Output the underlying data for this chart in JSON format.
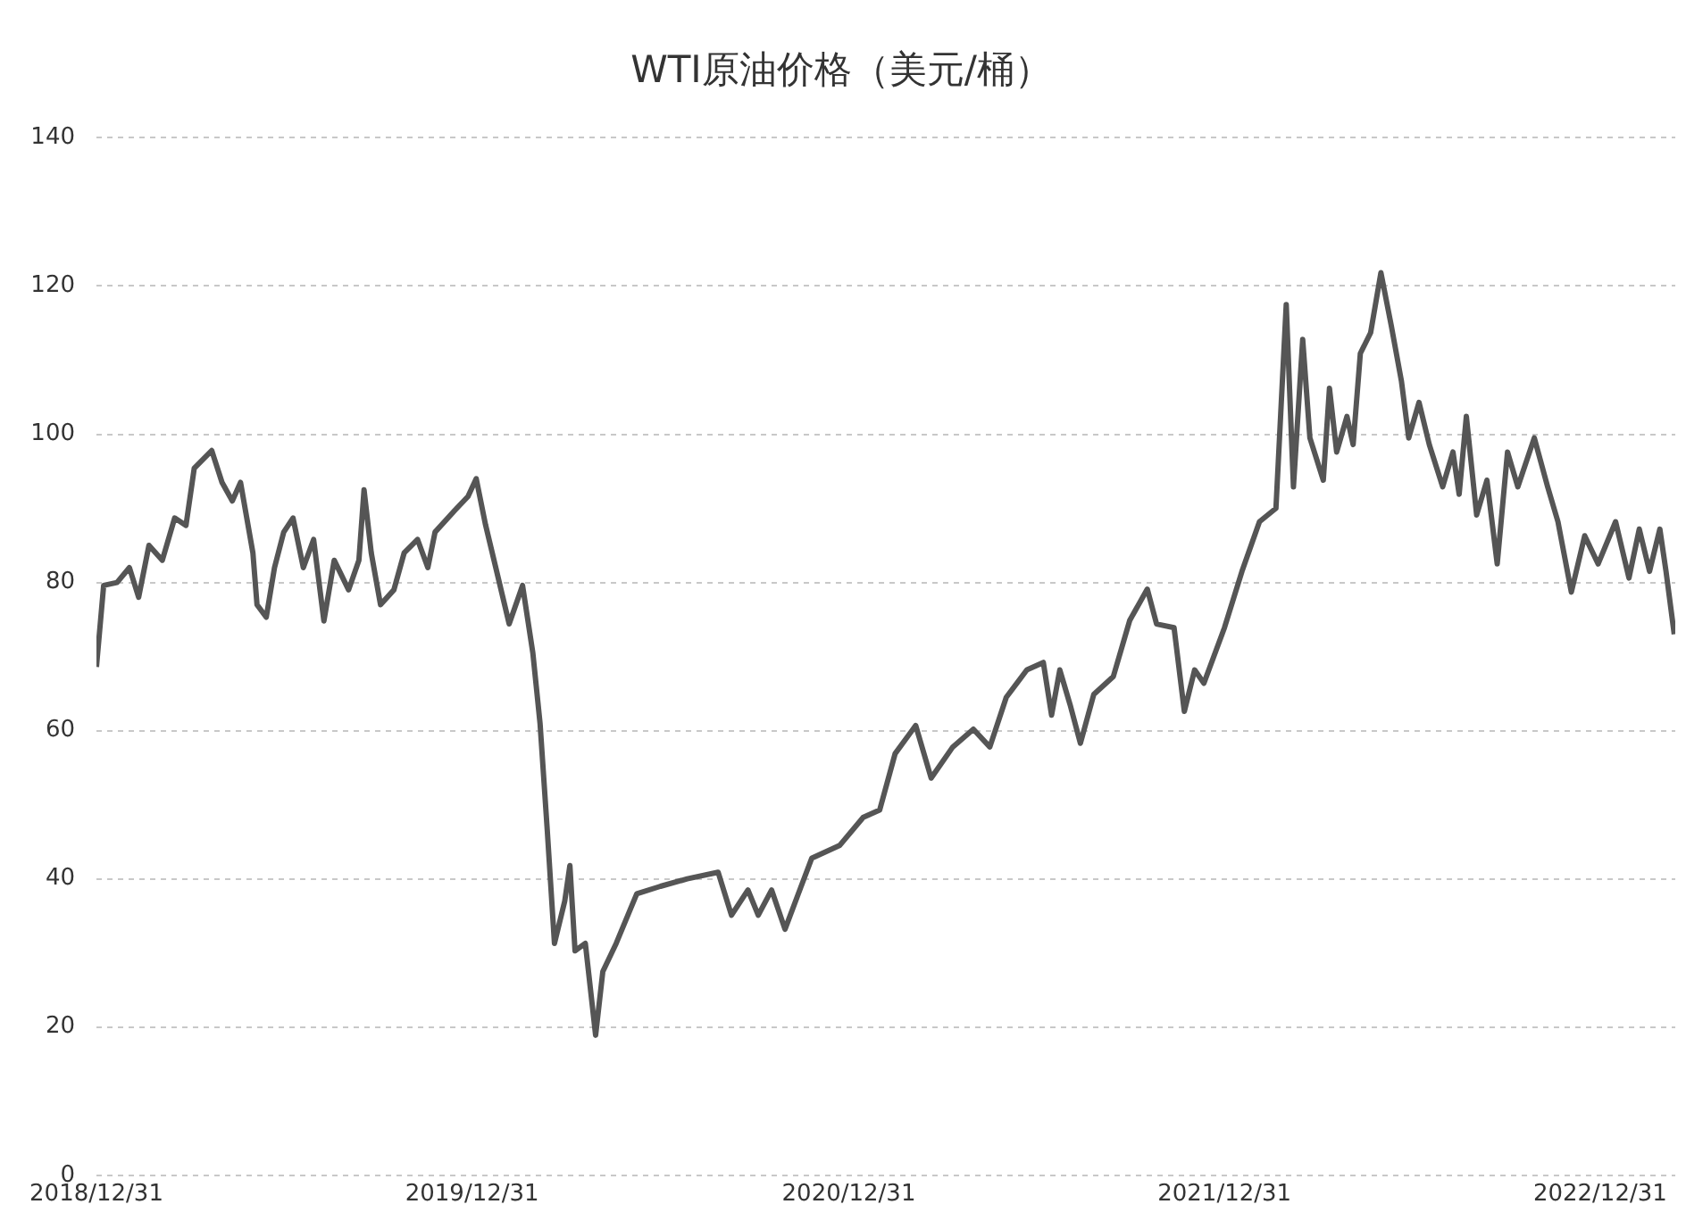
{
  "chart_data": {
    "type": "line",
    "title": "WTI原油价格（美元/桶）",
    "x": [
      "2018-12-31",
      "2019-01-07",
      "2019-01-20",
      "2019-02-01",
      "2019-02-10",
      "2019-02-20",
      "2019-03-05",
      "2019-03-17",
      "2019-03-28",
      "2019-04-05",
      "2019-04-22",
      "2019-05-02",
      "2019-05-12",
      "2019-05-20",
      "2019-06-01",
      "2019-06-05",
      "2019-06-14",
      "2019-06-22",
      "2019-07-01",
      "2019-07-10",
      "2019-07-20",
      "2019-07-30",
      "2019-08-09",
      "2019-08-19",
      "2019-09-02",
      "2019-09-12",
      "2019-09-17",
      "2019-09-24",
      "2019-10-03",
      "2019-10-16",
      "2019-10-26",
      "2019-11-08",
      "2019-11-18",
      "2019-11-25",
      "2019-12-14",
      "2019-12-27",
      "2020-01-04",
      "2020-01-13",
      "2020-01-23",
      "2020-02-05",
      "2020-02-18",
      "2020-02-28",
      "2020-03-06",
      "2020-03-13",
      "2020-03-20",
      "2020-03-30",
      "2020-04-04",
      "2020-04-09",
      "2020-04-19",
      "2020-04-29",
      "2020-05-06",
      "2020-05-19",
      "2020-06-08",
      "2020-07-01",
      "2020-07-27",
      "2020-08-26",
      "2020-09-08",
      "2020-09-24",
      "2020-10-04",
      "2020-10-17",
      "2020-10-30",
      "2020-11-12",
      "2020-11-25",
      "2020-12-22",
      "2021-01-14",
      "2021-01-30",
      "2021-02-14",
      "2021-03-06",
      "2021-03-21",
      "2021-04-11",
      "2021-05-01",
      "2021-05-17",
      "2021-06-02",
      "2021-06-22",
      "2021-07-08",
      "2021-07-16",
      "2021-07-24",
      "2021-08-03",
      "2021-08-13",
      "2021-08-26",
      "2021-09-14",
      "2021-09-30",
      "2021-10-17",
      "2021-10-26",
      "2021-11-12",
      "2021-11-22",
      "2021-12-02",
      "2021-12-11",
      "2021-12-31",
      "2022-01-17",
      "2022-02-03",
      "2022-02-19",
      "2022-03-01",
      "2022-03-08",
      "2022-03-17",
      "2022-03-24",
      "2022-04-06",
      "2022-04-12",
      "2022-04-19",
      "2022-04-29",
      "2022-05-05",
      "2022-05-12",
      "2022-05-22",
      "2022-06-01",
      "2022-06-11",
      "2022-06-21",
      "2022-06-28",
      "2022-07-08",
      "2022-07-18",
      "2022-07-31",
      "2022-08-10",
      "2022-08-16",
      "2022-08-23",
      "2022-09-02",
      "2022-09-12",
      "2022-09-22",
      "2022-10-02",
      "2022-10-12",
      "2022-10-28",
      "2022-11-10",
      "2022-11-20",
      "2022-12-03",
      "2022-12-16",
      "2022-12-29",
      "2023-01-15",
      "2023-01-28",
      "2023-02-07",
      "2023-02-17",
      "2023-02-27",
      "2023-03-05",
      "2023-03-13"
    ],
    "values": [
      68.6,
      79.6,
      80,
      82,
      78,
      85,
      83,
      88.7,
      87.7,
      95.4,
      97.8,
      93.5,
      91,
      93.5,
      84,
      77,
      75.3,
      82,
      86.8,
      88.7,
      82,
      85.8,
      74.8,
      83,
      79,
      83,
      92.5,
      84,
      77,
      79,
      84,
      85.8,
      82,
      86.8,
      89.7,
      91.6,
      94,
      87.8,
      82,
      74.4,
      79.6,
      70.5,
      61,
      46.6,
      31.3,
      37,
      41.8,
      30.3,
      31.3,
      18.9,
      27.5,
      31.3,
      38,
      39,
      40,
      40.9,
      35.1,
      38.5,
      35.1,
      38.5,
      33.2,
      38,
      42.8,
      44.5,
      48.3,
      49.3,
      56.9,
      60.7,
      53.6,
      57.8,
      60.2,
      57.8,
      64.5,
      68.2,
      69.2,
      62.1,
      68.2,
      63.5,
      58.3,
      64.9,
      67.3,
      74.9,
      79.1,
      74.4,
      73.9,
      62.6,
      68.2,
      66.4,
      73.9,
      81.5,
      88.2,
      90,
      117.5,
      92.9,
      112.8,
      99.5,
      93.8,
      106.2,
      97.6,
      102.4,
      98.6,
      110.9,
      113.7,
      121.8,
      114.7,
      107.1,
      99.5,
      104.3,
      98.6,
      92.9,
      97.6,
      91.9,
      102.4,
      89.1,
      93.8,
      82.5,
      97.6,
      92.9,
      99.5,
      92.9,
      88.2,
      78.7,
      86.3,
      82.5,
      88.2,
      80.6,
      87.2,
      81.5,
      87.2,
      81.5,
      73
    ],
    "color": "#555555",
    "xlim": [
      "2018-12-31",
      "2023-03-14"
    ],
    "xticks": [
      {
        "value": "2018-12-31",
        "label": "2018/12/31"
      },
      {
        "value": "2019-12-31",
        "label": "2019/12/31"
      },
      {
        "value": "2020-12-31",
        "label": "2020/12/31"
      },
      {
        "value": "2021-12-31",
        "label": "2021/12/31"
      },
      {
        "value": "2022-12-31",
        "label": "2022/12/31"
      }
    ],
    "ylim": [
      0,
      140
    ],
    "yticks": [
      0,
      20,
      40,
      60,
      80,
      100,
      120,
      140
    ],
    "grid": "y",
    "marker": "none",
    "line_style": "solid",
    "legend": false
  }
}
